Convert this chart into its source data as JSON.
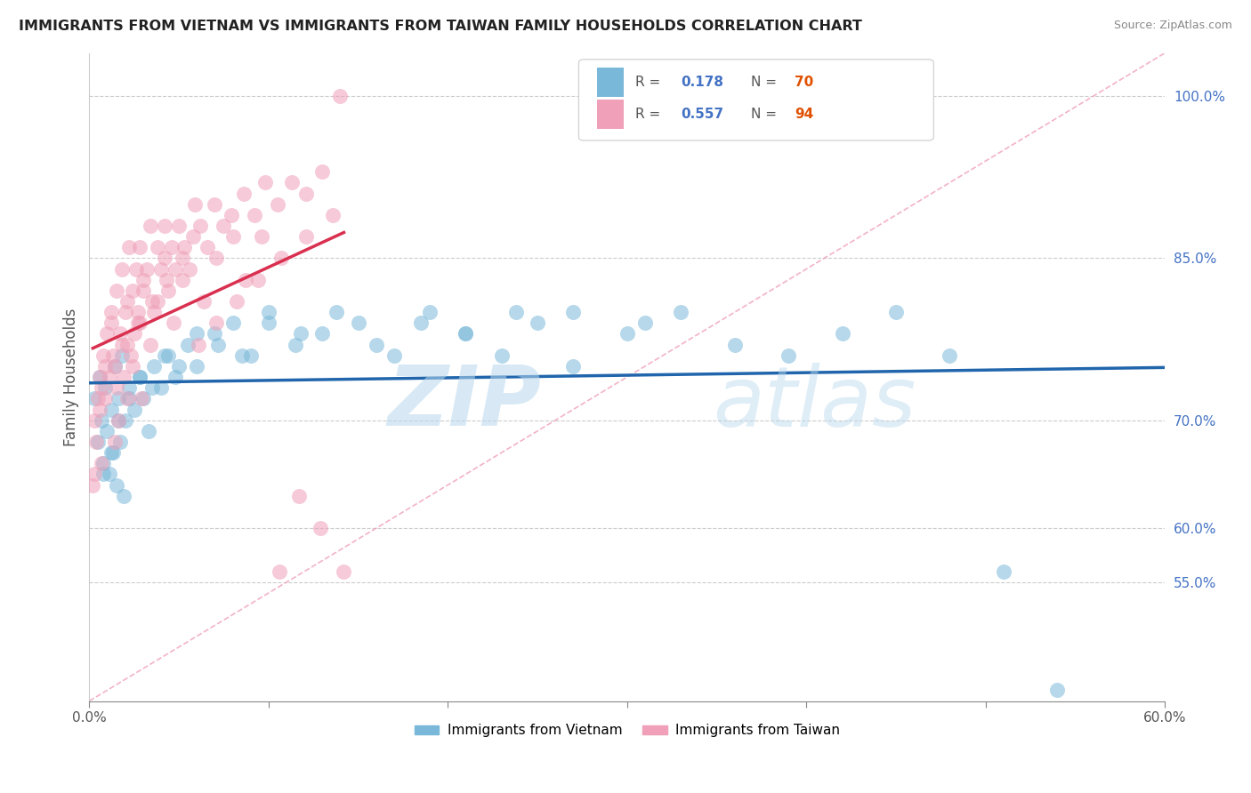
{
  "title": "IMMIGRANTS FROM VIETNAM VS IMMIGRANTS FROM TAIWAN FAMILY HOUSEHOLDS CORRELATION CHART",
  "source": "Source: ZipAtlas.com",
  "ylabel": "Family Households",
  "xlim": [
    0.0,
    0.6
  ],
  "ylim": [
    0.44,
    1.04
  ],
  "y_ticks": [
    0.55,
    0.6,
    0.7,
    0.85,
    1.0
  ],
  "y_tick_labels": [
    "55.0%",
    "60.0%",
    "70.0%",
    "85.0%",
    "100.0%"
  ],
  "legend_r1": "R =  0.178",
  "legend_n1": "N = 70",
  "legend_r2": "R =  0.557",
  "legend_n2": "N = 94",
  "legend_label1": "Immigrants from Vietnam",
  "legend_label2": "Immigrants from Taiwan",
  "color_vietnam": "#7ab8d9",
  "color_taiwan": "#f0a0b8",
  "color_reg_vietnam": "#2166ac",
  "color_reg_taiwan": "#d93050",
  "color_diag": "#f0a0b8",
  "watermark_zip": "ZIP",
  "watermark_atlas": "atlas",
  "vietnam_x": [
    0.003,
    0.005,
    0.006,
    0.007,
    0.008,
    0.009,
    0.01,
    0.011,
    0.012,
    0.013,
    0.014,
    0.015,
    0.016,
    0.017,
    0.018,
    0.019,
    0.02,
    0.022,
    0.025,
    0.028,
    0.03,
    0.033,
    0.036,
    0.04,
    0.044,
    0.048,
    0.055,
    0.06,
    0.07,
    0.08,
    0.09,
    0.1,
    0.115,
    0.13,
    0.15,
    0.17,
    0.19,
    0.21,
    0.23,
    0.25,
    0.27,
    0.3,
    0.33,
    0.36,
    0.39,
    0.42,
    0.45,
    0.48,
    0.51,
    0.54,
    0.008,
    0.012,
    0.016,
    0.022,
    0.028,
    0.035,
    0.042,
    0.05,
    0.06,
    0.072,
    0.085,
    0.1,
    0.118,
    0.138,
    0.16,
    0.185,
    0.21,
    0.238,
    0.27,
    0.31
  ],
  "vietnam_y": [
    0.72,
    0.68,
    0.74,
    0.7,
    0.66,
    0.73,
    0.69,
    0.65,
    0.71,
    0.67,
    0.75,
    0.64,
    0.72,
    0.68,
    0.76,
    0.63,
    0.7,
    0.73,
    0.71,
    0.74,
    0.72,
    0.69,
    0.75,
    0.73,
    0.76,
    0.74,
    0.77,
    0.75,
    0.78,
    0.79,
    0.76,
    0.8,
    0.77,
    0.78,
    0.79,
    0.76,
    0.8,
    0.78,
    0.76,
    0.79,
    0.75,
    0.78,
    0.8,
    0.77,
    0.76,
    0.78,
    0.8,
    0.76,
    0.56,
    0.45,
    0.65,
    0.67,
    0.7,
    0.72,
    0.74,
    0.73,
    0.76,
    0.75,
    0.78,
    0.77,
    0.76,
    0.79,
    0.78,
    0.8,
    0.77,
    0.79,
    0.78,
    0.8,
    0.8,
    0.79
  ],
  "taiwan_x": [
    0.002,
    0.003,
    0.004,
    0.005,
    0.006,
    0.007,
    0.008,
    0.009,
    0.01,
    0.011,
    0.012,
    0.013,
    0.014,
    0.015,
    0.016,
    0.017,
    0.018,
    0.019,
    0.02,
    0.021,
    0.022,
    0.023,
    0.024,
    0.025,
    0.026,
    0.027,
    0.028,
    0.029,
    0.03,
    0.032,
    0.034,
    0.036,
    0.038,
    0.04,
    0.042,
    0.044,
    0.046,
    0.048,
    0.05,
    0.053,
    0.056,
    0.059,
    0.062,
    0.066,
    0.07,
    0.075,
    0.08,
    0.086,
    0.092,
    0.098,
    0.105,
    0.113,
    0.121,
    0.13,
    0.14,
    0.003,
    0.006,
    0.009,
    0.012,
    0.015,
    0.018,
    0.021,
    0.024,
    0.027,
    0.03,
    0.034,
    0.038,
    0.042,
    0.047,
    0.052,
    0.058,
    0.064,
    0.071,
    0.079,
    0.087,
    0.096,
    0.106,
    0.117,
    0.129,
    0.142,
    0.007,
    0.014,
    0.021,
    0.028,
    0.035,
    0.043,
    0.052,
    0.061,
    0.071,
    0.082,
    0.094,
    0.107,
    0.121,
    0.136
  ],
  "taiwan_y": [
    0.64,
    0.7,
    0.68,
    0.72,
    0.74,
    0.66,
    0.76,
    0.72,
    0.78,
    0.74,
    0.8,
    0.76,
    0.68,
    0.82,
    0.7,
    0.78,
    0.84,
    0.74,
    0.8,
    0.72,
    0.86,
    0.76,
    0.82,
    0.78,
    0.84,
    0.8,
    0.86,
    0.72,
    0.82,
    0.84,
    0.88,
    0.8,
    0.86,
    0.84,
    0.88,
    0.82,
    0.86,
    0.84,
    0.88,
    0.86,
    0.84,
    0.9,
    0.88,
    0.86,
    0.9,
    0.88,
    0.87,
    0.91,
    0.89,
    0.92,
    0.9,
    0.92,
    0.91,
    0.93,
    1.0,
    0.65,
    0.71,
    0.75,
    0.79,
    0.73,
    0.77,
    0.81,
    0.75,
    0.79,
    0.83,
    0.77,
    0.81,
    0.85,
    0.79,
    0.83,
    0.87,
    0.81,
    0.85,
    0.89,
    0.83,
    0.87,
    0.56,
    0.63,
    0.6,
    0.56,
    0.73,
    0.75,
    0.77,
    0.79,
    0.81,
    0.83,
    0.85,
    0.77,
    0.79,
    0.81,
    0.83,
    0.85,
    0.87,
    0.89
  ]
}
